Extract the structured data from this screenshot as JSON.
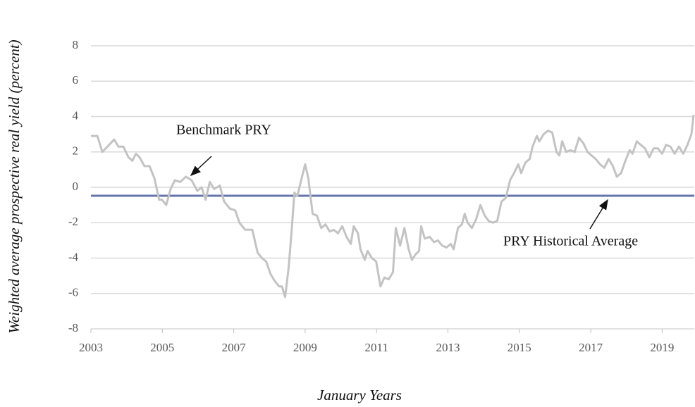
{
  "chart_data": {
    "type": "line",
    "ylabel": "Weighted average prospective real yield (percent)",
    "xlabel": "January Years",
    "xlim": [
      2003,
      2019.9
    ],
    "xticks": [
      2003,
      2005,
      2007,
      2009,
      2011,
      2013,
      2015,
      2017,
      2019
    ],
    "ylim": [
      -8,
      8
    ],
    "yticks": [
      -8,
      -6,
      -4,
      -2,
      0,
      2,
      4,
      6,
      8
    ],
    "grid": true,
    "series": [
      {
        "name": "Benchmark PRY",
        "color": "#c3c3c3",
        "x": [
          2003.0,
          2003.18,
          2003.32,
          2003.51,
          2003.65,
          2003.77,
          2003.91,
          2004.05,
          2004.16,
          2004.26,
          2004.36,
          2004.5,
          2004.64,
          2004.78,
          2004.91,
          2004.99,
          2005.11,
          2005.23,
          2005.35,
          2005.5,
          2005.66,
          2005.82,
          2005.98,
          2006.1,
          2006.21,
          2006.33,
          2006.45,
          2006.61,
          2006.73,
          2006.89,
          2007.04,
          2007.16,
          2007.32,
          2007.52,
          2007.67,
          2007.79,
          2007.91,
          2008.03,
          2008.15,
          2008.27,
          2008.35,
          2008.44,
          2008.54,
          2008.62,
          2008.7,
          2008.78,
          2008.9,
          2009.0,
          2009.09,
          2009.21,
          2009.33,
          2009.45,
          2009.57,
          2009.69,
          2009.8,
          2009.92,
          2010.04,
          2010.16,
          2010.28,
          2010.36,
          2010.48,
          2010.55,
          2010.67,
          2010.75,
          2010.87,
          2010.99,
          2011.11,
          2011.22,
          2011.34,
          2011.46,
          2011.54,
          2011.66,
          2011.78,
          2011.9,
          2011.99,
          2012.09,
          2012.19,
          2012.25,
          2012.35,
          2012.49,
          2012.61,
          2012.72,
          2012.84,
          2012.96,
          2013.08,
          2013.16,
          2013.28,
          2013.39,
          2013.47,
          2013.55,
          2013.67,
          2013.79,
          2013.91,
          2014.03,
          2014.14,
          2014.26,
          2014.38,
          2014.5,
          2014.62,
          2014.74,
          2014.85,
          2014.97,
          2015.05,
          2015.17,
          2015.29,
          2015.37,
          2015.49,
          2015.56,
          2015.68,
          2015.8,
          2015.92,
          2016.04,
          2016.12,
          2016.2,
          2016.31,
          2016.43,
          2016.55,
          2016.67,
          2016.79,
          2016.91,
          2017.02,
          2017.14,
          2017.26,
          2017.38,
          2017.5,
          2017.62,
          2017.73,
          2017.85,
          2017.97,
          2018.09,
          2018.17,
          2018.29,
          2018.4,
          2018.52,
          2018.64,
          2018.76,
          2018.88,
          2019.0,
          2019.11,
          2019.23,
          2019.35,
          2019.47,
          2019.59,
          2019.71,
          2019.82,
          2019.88
        ],
        "values": [
          2.9,
          2.9,
          2.0,
          2.4,
          2.7,
          2.3,
          2.3,
          1.7,
          1.5,
          1.9,
          1.7,
          1.2,
          1.2,
          0.5,
          -0.7,
          -0.7,
          -1.0,
          -0.1,
          0.4,
          0.3,
          0.6,
          0.4,
          -0.2,
          0.0,
          -0.7,
          0.3,
          -0.1,
          0.1,
          -0.8,
          -1.2,
          -1.3,
          -2.0,
          -2.4,
          -2.4,
          -3.7,
          -4.0,
          -4.2,
          -4.9,
          -5.3,
          -5.6,
          -5.6,
          -6.2,
          -4.5,
          -2.5,
          -0.3,
          -0.5,
          0.5,
          1.3,
          0.5,
          -1.5,
          -1.6,
          -2.3,
          -2.1,
          -2.5,
          -2.4,
          -2.6,
          -2.2,
          -2.8,
          -3.2,
          -2.2,
          -2.6,
          -3.5,
          -4.1,
          -3.6,
          -4.0,
          -4.2,
          -5.6,
          -5.1,
          -5.2,
          -4.8,
          -2.3,
          -3.3,
          -2.3,
          -3.5,
          -4.1,
          -3.8,
          -3.6,
          -2.2,
          -2.9,
          -2.8,
          -3.1,
          -3.0,
          -3.3,
          -3.4,
          -3.2,
          -3.5,
          -2.3,
          -2.1,
          -1.5,
          -2.0,
          -2.3,
          -1.8,
          -1.0,
          -1.6,
          -1.9,
          -2.0,
          -1.9,
          -0.8,
          -0.6,
          0.4,
          0.8,
          1.3,
          0.8,
          1.4,
          1.6,
          2.3,
          2.9,
          2.6,
          3.0,
          3.2,
          3.1,
          2.0,
          1.8,
          2.6,
          2.0,
          2.1,
          2.0,
          2.8,
          2.5,
          2.0,
          1.8,
          1.6,
          1.3,
          1.1,
          1.6,
          1.2,
          0.6,
          0.8,
          1.5,
          2.1,
          1.9,
          2.6,
          2.4,
          2.2,
          1.7,
          2.2,
          2.2,
          1.9,
          2.4,
          2.3,
          1.9,
          2.3,
          1.9,
          2.4,
          3.0,
          4.1
        ]
      }
    ],
    "reference_line": {
      "name": "PRY Historical Average",
      "value": -0.48,
      "color": "#6475ad"
    }
  }
}
